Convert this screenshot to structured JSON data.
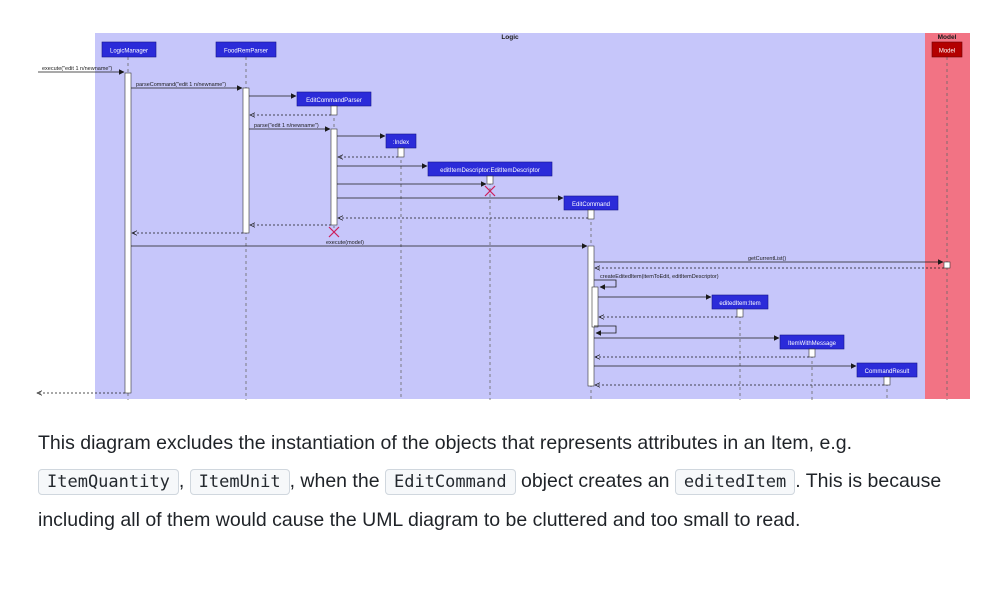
{
  "diagram": {
    "logic_box_title": "Logic",
    "model_box_title": "Model",
    "participants": [
      {
        "id": "lm",
        "label": "LogicManager"
      },
      {
        "id": "frp",
        "label": "FoodRemParser"
      },
      {
        "id": "ecp",
        "label": "EditCommandParser"
      },
      {
        "id": "idx",
        "label": ":Index"
      },
      {
        "id": "eid",
        "label": "editItemDescriptor:EditItemDescriptor"
      },
      {
        "id": "ec",
        "label": "EditCommand"
      },
      {
        "id": "ei",
        "label": "editedItem:Item"
      },
      {
        "id": "iwm",
        "label": "ItemWithMessage"
      },
      {
        "id": "cr",
        "label": "CommandResult"
      },
      {
        "id": "model",
        "label": "Model"
      }
    ],
    "messages": [
      {
        "id": "m1",
        "label": "execute(\"edit 1 n/newname\")"
      },
      {
        "id": "m2",
        "label": "parseCommand(\"edit 1 n/newname\")"
      },
      {
        "id": "m3",
        "label": "parse(\"edit 1 n/newname\")"
      },
      {
        "id": "m4",
        "label": "execute(model)"
      },
      {
        "id": "m5",
        "label": "getCurrentList()"
      },
      {
        "id": "m6",
        "label": "createEditedItem(itemToEdit, editItemDescriptor)"
      }
    ]
  },
  "paragraph": {
    "part1": "This diagram excludes the instantiation of the objects that represents attributes in an Item, e.g.",
    "code1": "ItemQuantity",
    "sep1": ",",
    "code2": "ItemUnit",
    "part2": ", when the",
    "code3": "EditCommand",
    "part3": "object creates an",
    "code4": "editedItem",
    "part4": ". This is because including all of them would cause the UML diagram to be cluttered and too small to read."
  }
}
